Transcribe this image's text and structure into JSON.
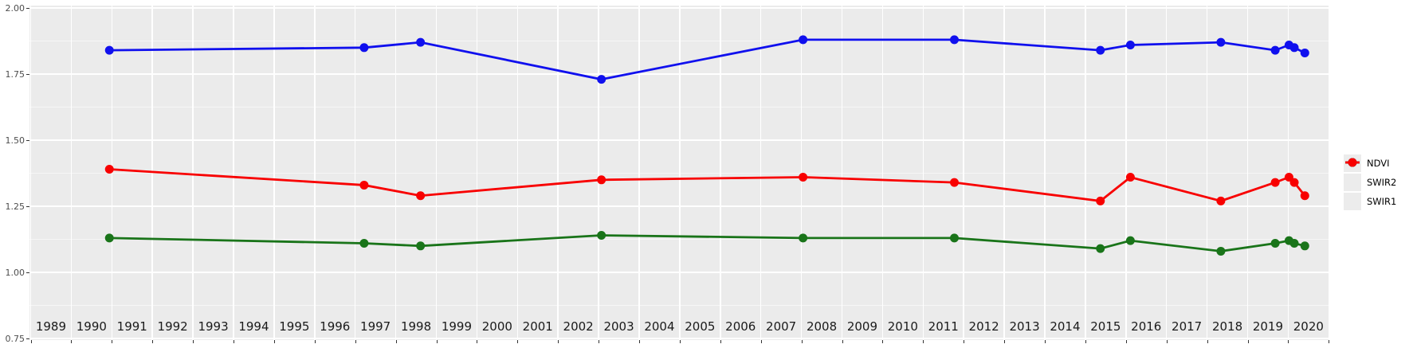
{
  "chart_data": {
    "type": "line",
    "title": "",
    "xlabel": "",
    "ylabel": "",
    "x_tick_labels": [
      "1989",
      "1990",
      "1991",
      "1992",
      "1993",
      "1994",
      "1995",
      "1996",
      "1997",
      "1998",
      "1999",
      "2000",
      "2001",
      "2002",
      "2003",
      "2004",
      "2005",
      "2006",
      "2007",
      "2008",
      "2009",
      "2010",
      "2011",
      "2012",
      "2013",
      "2014",
      "2015",
      "2016",
      "2017",
      "2018",
      "2019",
      "2020"
    ],
    "x_axis_range_years": [
      1989,
      2021
    ],
    "y_tick_labels": [
      "2.00",
      "1.75",
      "1.50",
      "1.25",
      "1.00",
      "0.75"
    ],
    "ylim": [
      0.75,
      2.0
    ],
    "y_major_step": 0.25,
    "y_minor_step": 0.125,
    "grid": "white major and minor gridlines on gray panel",
    "legend_position": "right",
    "x": [
      1990.94,
      1997.22,
      1998.61,
      2003.07,
      2008.04,
      2011.77,
      2015.37,
      2016.11,
      2018.34,
      2019.68,
      2020.02,
      2020.15,
      2020.41
    ],
    "series": [
      {
        "name": "NDVI",
        "color": "#1010EE",
        "values": [
          1.84,
          1.85,
          1.87,
          1.73,
          1.88,
          1.88,
          1.84,
          1.86,
          1.87,
          1.84,
          1.86,
          1.85,
          1.83
        ]
      },
      {
        "name": "SWIR2",
        "color": "#197419",
        "values": [
          1.13,
          1.11,
          1.1,
          1.14,
          1.13,
          1.13,
          1.09,
          1.12,
          1.08,
          1.11,
          1.12,
          1.11,
          1.1
        ]
      },
      {
        "name": "SWIR1",
        "color": "#F80000",
        "values": [
          1.39,
          1.33,
          1.29,
          1.35,
          1.36,
          1.34,
          1.27,
          1.36,
          1.27,
          1.34,
          1.36,
          1.34,
          1.29
        ]
      }
    ],
    "legend_entries": [
      {
        "label": "NDVI",
        "color": "#1010EE"
      },
      {
        "label": "SWIR2",
        "color": "#197419"
      },
      {
        "label": "SWIR1",
        "color": "#F80000"
      }
    ],
    "colors": {
      "panel_bg": "#EBEBEB",
      "gridline": "#FFFFFF",
      "y_axis_text": "#4D4D4D",
      "x_axis_text": "#1A1A1A",
      "tick_mark": "#333333",
      "legend_key_bg": "#ECECEC",
      "page_bg": "#FFFFFF"
    }
  }
}
